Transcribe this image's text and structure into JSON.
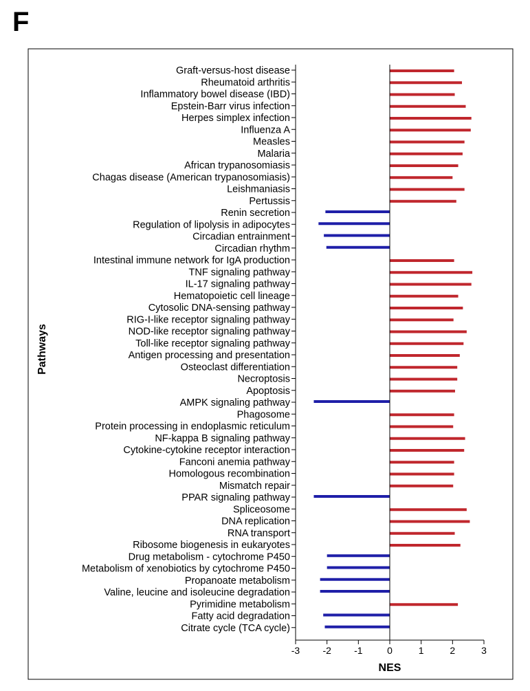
{
  "panel_label": "F",
  "chart_data": {
    "type": "bar",
    "orientation": "horizontal",
    "xlabel": "NES",
    "ylabel": "Pathways",
    "xlim": [
      -3,
      3
    ],
    "xticks": [
      -3,
      -2,
      -1,
      0,
      1,
      2,
      3
    ],
    "colors": {
      "positive": "#c0272d",
      "negative": "#1f1fa8"
    },
    "categories": [
      "Graft-versus-host disease",
      "Rheumatoid arthritis",
      "Inflammatory bowel disease (IBD)",
      "Epstein-Barr virus infection",
      "Herpes simplex infection",
      "Influenza A",
      "Measles",
      "Malaria",
      "African trypanosomiasis",
      "Chagas disease (American trypanosomiasis)",
      "Leishmaniasis",
      "Pertussis",
      "Renin secretion",
      "Regulation of lipolysis in adipocytes",
      "Circadian entrainment",
      "Circadian rhythm",
      "Intestinal immune network for IgA production",
      "TNF signaling pathway",
      "IL-17 signaling pathway",
      "Hematopoietic cell lineage",
      "Cytosolic DNA-sensing pathway",
      "RIG-I-like receptor signaling pathway",
      "NOD-like receptor signaling pathway",
      "Toll-like receptor signaling pathway",
      "Antigen processing and presentation",
      "Osteoclast differentiation",
      "Necroptosis",
      "Apoptosis",
      "AMPK signaling pathway",
      "Phagosome",
      "Protein processing in endoplasmic reticulum",
      "NF-kappa B signaling pathway",
      "Cytokine-cytokine receptor interaction",
      "Fanconi anemia pathway",
      "Homologous recombination",
      "Mismatch repair",
      "PPAR signaling pathway",
      "Spliceosome",
      "DNA replication",
      "RNA transport",
      "Ribosome biogenesis in eukaryotes",
      "Drug metabolism - cytochrome P450",
      "Metabolism of xenobiotics by cytochrome P450",
      "Propanoate metabolism",
      "Valine, leucine and isoleucine degradation",
      "Pyrimidine metabolism",
      "Fatty acid degradation",
      "Citrate cycle (TCA cycle)"
    ],
    "values": [
      2.05,
      2.3,
      2.07,
      2.42,
      2.6,
      2.58,
      2.38,
      2.32,
      2.18,
      2.0,
      2.38,
      2.12,
      -2.05,
      -2.27,
      -2.1,
      -2.02,
      2.05,
      2.63,
      2.6,
      2.18,
      2.33,
      2.03,
      2.45,
      2.35,
      2.23,
      2.15,
      2.15,
      2.08,
      -2.42,
      2.05,
      2.02,
      2.4,
      2.37,
      2.05,
      2.05,
      2.02,
      -2.42,
      2.45,
      2.55,
      2.07,
      2.25,
      -2.0,
      -2.0,
      -2.22,
      -2.22,
      2.17,
      -2.12,
      -2.07
    ]
  }
}
